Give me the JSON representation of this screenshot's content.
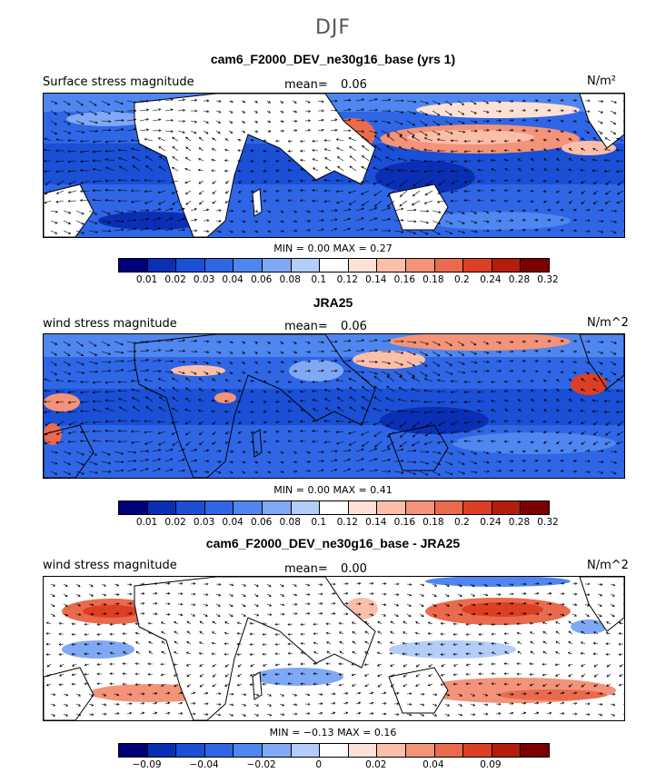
{
  "season": "DJF",
  "colors": [
    "#00007a",
    "#0a2fb4",
    "#1a4fd6",
    "#2f66e6",
    "#4f86f0",
    "#7fa8f5",
    "#b3cdf8",
    "#ffffff",
    "#fde1d6",
    "#fbbea8",
    "#f3937a",
    "#ea6a4d",
    "#dc3f23",
    "#b41d0a",
    "#7d0000"
  ],
  "panels": [
    {
      "title": "cam6_F2000_DEV_ne30g16_base (yrs 1)",
      "left_label": "Surface stress magnitude",
      "mean_label": "mean=",
      "mean_value": "0.06",
      "units": "N/m²",
      "min_label": "MIN =",
      "min_value": "0.00",
      "max_label": "MAX =",
      "max_value": "0.27",
      "ticks": [
        "0.01",
        "0.02",
        "0.03",
        "0.04",
        "0.06",
        "0.08",
        "0.1",
        "0.12",
        "0.14",
        "0.16",
        "0.18",
        "0.2",
        "0.24",
        "0.28",
        "0.32"
      ]
    },
    {
      "title": "JRA25",
      "left_label": "wind stress magnitude",
      "mean_label": "mean=",
      "mean_value": "0.06",
      "units": "N/m^2",
      "min_label": "MIN =",
      "min_value": "0.00",
      "max_label": "MAX =",
      "max_value": "0.41",
      "ticks": [
        "0.01",
        "0.02",
        "0.03",
        "0.04",
        "0.06",
        "0.08",
        "0.1",
        "0.12",
        "0.14",
        "0.16",
        "0.18",
        "0.2",
        "0.24",
        "0.28",
        "0.32"
      ]
    },
    {
      "title": "cam6_F2000_DEV_ne30g16_base - JRA25",
      "left_label": "wind stress magnitude",
      "mean_label": "mean=",
      "mean_value": "0.00",
      "units": "N/m^2",
      "min_label": "MIN =",
      "min_value": "−0.13",
      "max_label": "MAX =",
      "max_value": "0.16",
      "ticks": [
        "−0.09",
        "−0.04",
        "−0.02",
        "0",
        "0.02",
        "0.04",
        "0.09"
      ]
    }
  ]
}
